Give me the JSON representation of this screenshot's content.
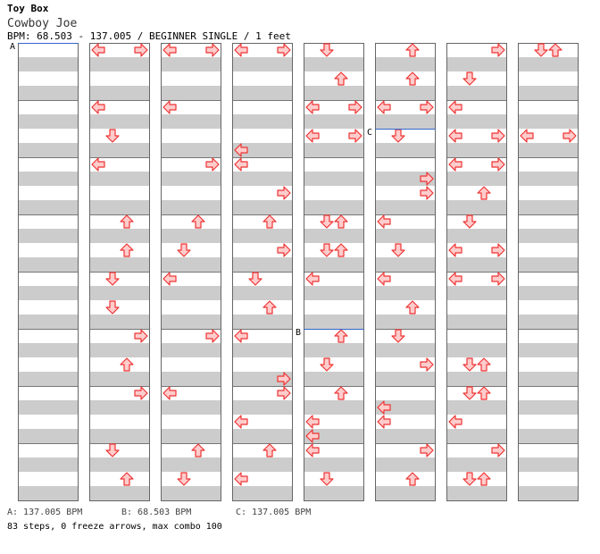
{
  "song": {
    "title": "Toy Box",
    "artist": "Cowboy Joe",
    "info": "BPM: 68.503 - 137.005 / BEGINNER SINGLE / 1 feet"
  },
  "bpm_markers": [
    {
      "label": "A",
      "bpm": "137.005 BPM",
      "footer": "A: 137.005 BPM",
      "column": 0,
      "measure": 0
    },
    {
      "label": "B",
      "bpm": "68.503 BPM",
      "footer": "B: 68.503 BPM",
      "column": 4,
      "measure": 5
    },
    {
      "label": "C",
      "bpm": "137.005 BPM",
      "footer": "C: 137.005 BPM",
      "column": 5,
      "measure": 1.5
    }
  ],
  "stats": "83 steps, 0 freeze arrows, max combo 100",
  "colors": {
    "stripe": "#cccccc",
    "arrow_fill": "#ffcccc",
    "arrow_stroke": "#ee3333",
    "bpm_line": "#3366cc"
  },
  "chart_data": {
    "type": "step-chart",
    "lanes": [
      "left",
      "down",
      "up",
      "right"
    ],
    "measures_per_column": 8,
    "notes": [
      {
        "col": 1,
        "m": 0,
        "beat": 0,
        "lanes": [
          "left",
          "right"
        ]
      },
      {
        "col": 1,
        "m": 1,
        "beat": 0,
        "lanes": [
          "left"
        ]
      },
      {
        "col": 1,
        "m": 1,
        "beat": 2,
        "lanes": [
          "down"
        ]
      },
      {
        "col": 1,
        "m": 2,
        "beat": 0,
        "lanes": [
          "left"
        ]
      },
      {
        "col": 1,
        "m": 3,
        "beat": 0,
        "lanes": [
          "up"
        ]
      },
      {
        "col": 1,
        "m": 3,
        "beat": 2,
        "lanes": [
          "up"
        ]
      },
      {
        "col": 1,
        "m": 4,
        "beat": 0,
        "lanes": [
          "down"
        ]
      },
      {
        "col": 1,
        "m": 4,
        "beat": 2,
        "lanes": [
          "down"
        ]
      },
      {
        "col": 1,
        "m": 5,
        "beat": 0,
        "lanes": [
          "right"
        ]
      },
      {
        "col": 1,
        "m": 5,
        "beat": 2,
        "lanes": [
          "up"
        ]
      },
      {
        "col": 1,
        "m": 6,
        "beat": 0,
        "lanes": [
          "right"
        ]
      },
      {
        "col": 1,
        "m": 7,
        "beat": 0,
        "lanes": [
          "down"
        ]
      },
      {
        "col": 1,
        "m": 7,
        "beat": 2,
        "lanes": [
          "up"
        ]
      },
      {
        "col": 2,
        "m": 0,
        "beat": 0,
        "lanes": [
          "left",
          "right"
        ]
      },
      {
        "col": 2,
        "m": 1,
        "beat": 0,
        "lanes": [
          "left"
        ]
      },
      {
        "col": 2,
        "m": 2,
        "beat": 0,
        "lanes": [
          "right"
        ]
      },
      {
        "col": 2,
        "m": 3,
        "beat": 0,
        "lanes": [
          "up"
        ]
      },
      {
        "col": 2,
        "m": 3,
        "beat": 2,
        "lanes": [
          "down"
        ]
      },
      {
        "col": 2,
        "m": 4,
        "beat": 0,
        "lanes": [
          "left"
        ]
      },
      {
        "col": 2,
        "m": 5,
        "beat": 0,
        "lanes": [
          "right"
        ]
      },
      {
        "col": 2,
        "m": 6,
        "beat": 0,
        "lanes": [
          "left"
        ]
      },
      {
        "col": 2,
        "m": 7,
        "beat": 0,
        "lanes": [
          "up"
        ]
      },
      {
        "col": 2,
        "m": 7,
        "beat": 2,
        "lanes": [
          "down"
        ]
      },
      {
        "col": 3,
        "m": 0,
        "beat": 0,
        "lanes": [
          "left",
          "right"
        ]
      },
      {
        "col": 3,
        "m": 1,
        "beat": 3,
        "lanes": [
          "left"
        ]
      },
      {
        "col": 3,
        "m": 2,
        "beat": 0,
        "lanes": [
          "left"
        ]
      },
      {
        "col": 3,
        "m": 2,
        "beat": 2,
        "lanes": [
          "right"
        ]
      },
      {
        "col": 3,
        "m": 3,
        "beat": 0,
        "lanes": [
          "up"
        ]
      },
      {
        "col": 3,
        "m": 3,
        "beat": 2,
        "lanes": [
          "right"
        ]
      },
      {
        "col": 3,
        "m": 4,
        "beat": 0,
        "lanes": [
          "down"
        ]
      },
      {
        "col": 3,
        "m": 4,
        "beat": 2,
        "lanes": [
          "up"
        ]
      },
      {
        "col": 3,
        "m": 5,
        "beat": 0,
        "lanes": [
          "left"
        ]
      },
      {
        "col": 3,
        "m": 5,
        "beat": 3,
        "lanes": [
          "right"
        ]
      },
      {
        "col": 3,
        "m": 6,
        "beat": 0,
        "lanes": [
          "right"
        ]
      },
      {
        "col": 3,
        "m": 6,
        "beat": 2,
        "lanes": [
          "left"
        ]
      },
      {
        "col": 3,
        "m": 7,
        "beat": 0,
        "lanes": [
          "up"
        ]
      },
      {
        "col": 3,
        "m": 7,
        "beat": 2,
        "lanes": [
          "left"
        ]
      },
      {
        "col": 4,
        "m": 0,
        "beat": 0,
        "lanes": [
          "down"
        ]
      },
      {
        "col": 4,
        "m": 0,
        "beat": 2,
        "lanes": [
          "up"
        ]
      },
      {
        "col": 4,
        "m": 1,
        "beat": 0,
        "lanes": [
          "left",
          "right"
        ]
      },
      {
        "col": 4,
        "m": 1,
        "beat": 2,
        "lanes": [
          "left",
          "right"
        ]
      },
      {
        "col": 4,
        "m": 3,
        "beat": 0,
        "lanes": [
          "down",
          "up"
        ]
      },
      {
        "col": 4,
        "m": 3,
        "beat": 2,
        "lanes": [
          "down",
          "up"
        ]
      },
      {
        "col": 4,
        "m": 4,
        "beat": 0,
        "lanes": [
          "left"
        ]
      },
      {
        "col": 4,
        "m": 5,
        "beat": 0,
        "lanes": [
          "up"
        ]
      },
      {
        "col": 4,
        "m": 5,
        "beat": 2,
        "lanes": [
          "down"
        ]
      },
      {
        "col": 4,
        "m": 6,
        "beat": 0,
        "lanes": [
          "up"
        ]
      },
      {
        "col": 4,
        "m": 6,
        "beat": 2,
        "lanes": [
          "left"
        ]
      },
      {
        "col": 4,
        "m": 6,
        "beat": 3,
        "lanes": [
          "left"
        ]
      },
      {
        "col": 4,
        "m": 7,
        "beat": 0,
        "lanes": [
          "left"
        ]
      },
      {
        "col": 4,
        "m": 7,
        "beat": 2,
        "lanes": [
          "down"
        ]
      },
      {
        "col": 5,
        "m": 0,
        "beat": 0,
        "lanes": [
          "up"
        ]
      },
      {
        "col": 5,
        "m": 0,
        "beat": 2,
        "lanes": [
          "up"
        ]
      },
      {
        "col": 5,
        "m": 1,
        "beat": 0,
        "lanes": [
          "left",
          "right"
        ]
      },
      {
        "col": 5,
        "m": 1,
        "beat": 2,
        "lanes": [
          "down"
        ]
      },
      {
        "col": 5,
        "m": 2,
        "beat": 1,
        "lanes": [
          "right"
        ]
      },
      {
        "col": 5,
        "m": 2,
        "beat": 2,
        "lanes": [
          "right"
        ]
      },
      {
        "col": 5,
        "m": 3,
        "beat": 0,
        "lanes": [
          "left"
        ]
      },
      {
        "col": 5,
        "m": 3,
        "beat": 2,
        "lanes": [
          "down"
        ]
      },
      {
        "col": 5,
        "m": 4,
        "beat": 0,
        "lanes": [
          "left"
        ]
      },
      {
        "col": 5,
        "m": 4,
        "beat": 2,
        "lanes": [
          "up"
        ]
      },
      {
        "col": 5,
        "m": 5,
        "beat": 0,
        "lanes": [
          "down"
        ]
      },
      {
        "col": 5,
        "m": 5,
        "beat": 2,
        "lanes": [
          "right"
        ]
      },
      {
        "col": 5,
        "m": 6,
        "beat": 1,
        "lanes": [
          "left"
        ]
      },
      {
        "col": 5,
        "m": 6,
        "beat": 2,
        "lanes": [
          "left"
        ]
      },
      {
        "col": 5,
        "m": 7,
        "beat": 0,
        "lanes": [
          "right"
        ]
      },
      {
        "col": 5,
        "m": 7,
        "beat": 2,
        "lanes": [
          "up"
        ]
      },
      {
        "col": 6,
        "m": 0,
        "beat": 0,
        "lanes": [
          "right"
        ]
      },
      {
        "col": 6,
        "m": 0,
        "beat": 2,
        "lanes": [
          "down"
        ]
      },
      {
        "col": 6,
        "m": 1,
        "beat": 0,
        "lanes": [
          "left"
        ]
      },
      {
        "col": 6,
        "m": 1,
        "beat": 2,
        "lanes": [
          "left",
          "right"
        ]
      },
      {
        "col": 6,
        "m": 2,
        "beat": 0,
        "lanes": [
          "left",
          "right"
        ]
      },
      {
        "col": 6,
        "m": 2,
        "beat": 2,
        "lanes": [
          "up"
        ]
      },
      {
        "col": 6,
        "m": 3,
        "beat": 0,
        "lanes": [
          "down"
        ]
      },
      {
        "col": 6,
        "m": 3,
        "beat": 2,
        "lanes": [
          "left",
          "right"
        ]
      },
      {
        "col": 6,
        "m": 4,
        "beat": 0,
        "lanes": [
          "left",
          "right"
        ]
      },
      {
        "col": 6,
        "m": 5,
        "beat": 2,
        "lanes": [
          "down",
          "up"
        ]
      },
      {
        "col": 6,
        "m": 6,
        "beat": 0,
        "lanes": [
          "down",
          "up"
        ]
      },
      {
        "col": 6,
        "m": 6,
        "beat": 2,
        "lanes": [
          "left"
        ]
      },
      {
        "col": 6,
        "m": 7,
        "beat": 0,
        "lanes": [
          "right"
        ]
      },
      {
        "col": 6,
        "m": 7,
        "beat": 2,
        "lanes": [
          "down",
          "up"
        ]
      },
      {
        "col": 7,
        "m": 0,
        "beat": 0,
        "lanes": [
          "down",
          "up"
        ]
      },
      {
        "col": 7,
        "m": 1,
        "beat": 2,
        "lanes": [
          "left",
          "right"
        ]
      }
    ]
  }
}
